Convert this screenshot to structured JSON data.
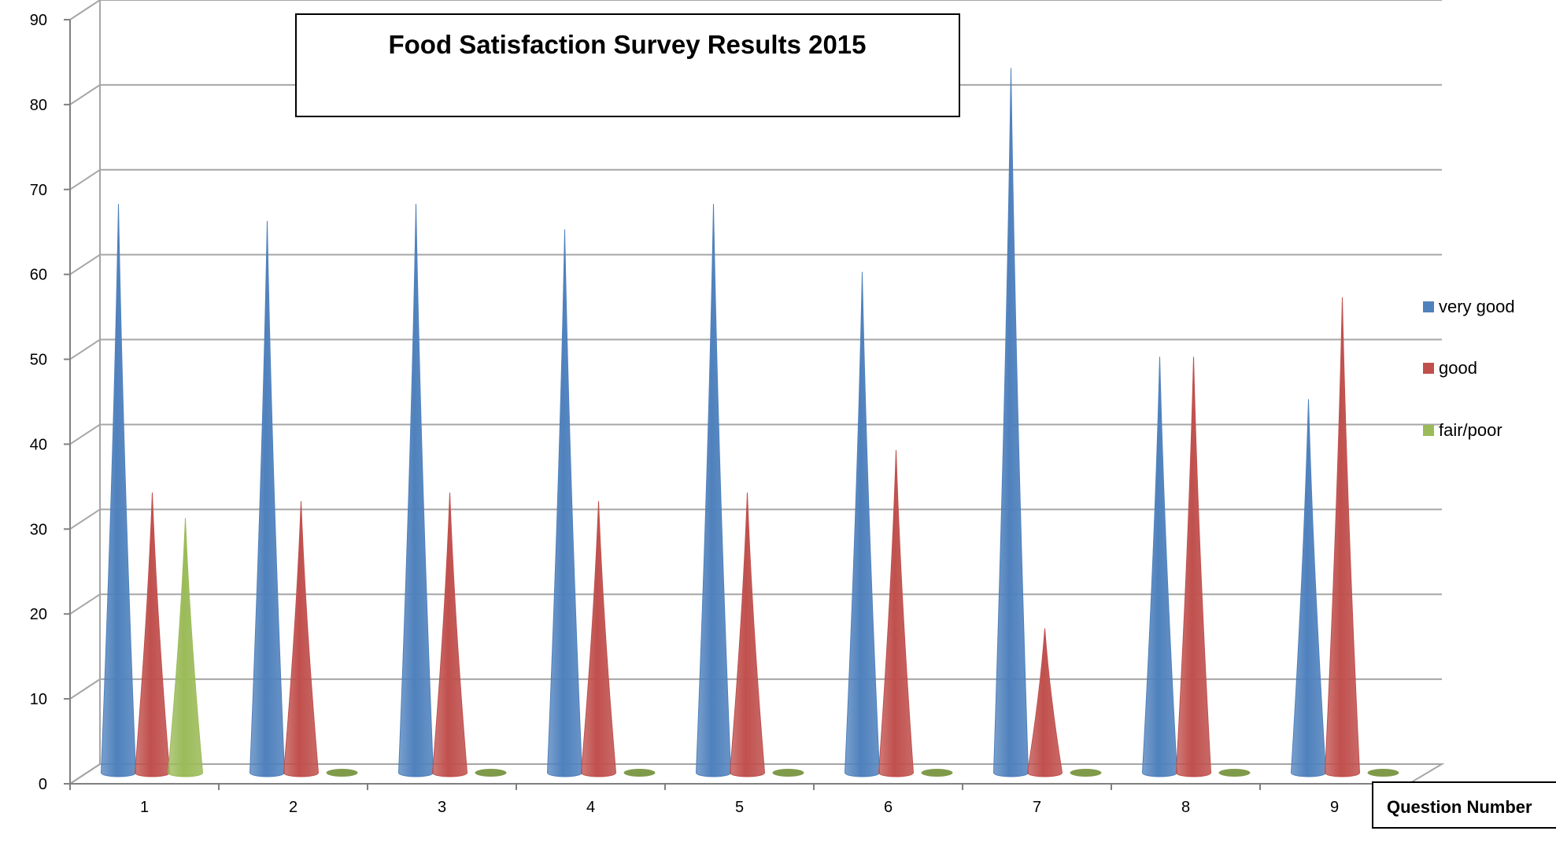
{
  "chart_data": {
    "type": "bar",
    "title": "Food Satisfaction Survey Results 2015",
    "xlabel": "Question Number",
    "ylabel": "",
    "categories": [
      "1",
      "2",
      "3",
      "4",
      "5",
      "6",
      "7",
      "8",
      "9"
    ],
    "series": [
      {
        "name": "very good",
        "color": "#4f81bd",
        "values": [
          67,
          65,
          67,
          64,
          67,
          59,
          83,
          49,
          44
        ]
      },
      {
        "name": "good",
        "color": "#c0504d",
        "values": [
          33,
          32,
          33,
          32,
          33,
          38,
          17,
          49,
          56
        ]
      },
      {
        "name": "fair/poor",
        "color": "#9bbb59",
        "values": [
          30,
          0,
          0,
          0,
          0,
          0,
          0,
          0,
          0
        ]
      }
    ],
    "ylim": [
      0,
      90
    ],
    "yticks": [
      0,
      10,
      20,
      30,
      40,
      50,
      60,
      70,
      80,
      90
    ],
    "grid": true,
    "legend_position": "right"
  }
}
